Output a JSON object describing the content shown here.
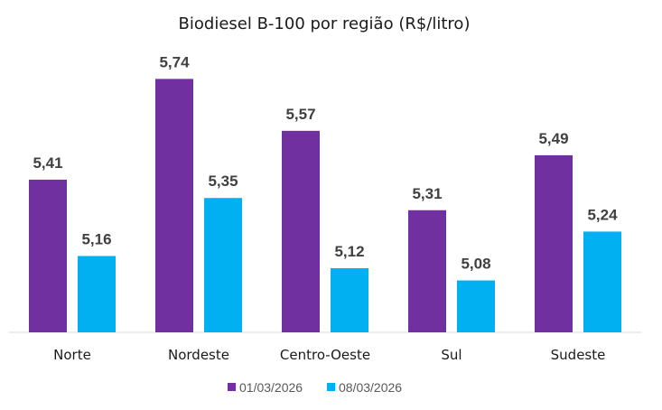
{
  "chart_data": {
    "type": "bar",
    "title": "Biodiesel B-100 por região (R$/litro)",
    "xlabel": "",
    "ylabel": "",
    "categories": [
      "Norte",
      "Nordeste",
      "Centro-Oeste",
      "Sul",
      "Sudeste"
    ],
    "series": [
      {
        "name": "01/03/2026",
        "color": "#7030A0",
        "values": [
          5.41,
          5.74,
          5.57,
          5.31,
          5.49
        ],
        "labels": [
          "5,41",
          "5,74",
          "5,57",
          "5,31",
          "5,49"
        ]
      },
      {
        "name": "08/03/2026",
        "color": "#00B0F0",
        "values": [
          5.16,
          5.35,
          5.12,
          5.08,
          5.24
        ],
        "labels": [
          "5,16",
          "5,35",
          "5,12",
          "5,08",
          "5,24"
        ]
      }
    ],
    "ylim": [
      4.91,
      5.75
    ],
    "grid": false,
    "legend_position": "bottom"
  }
}
